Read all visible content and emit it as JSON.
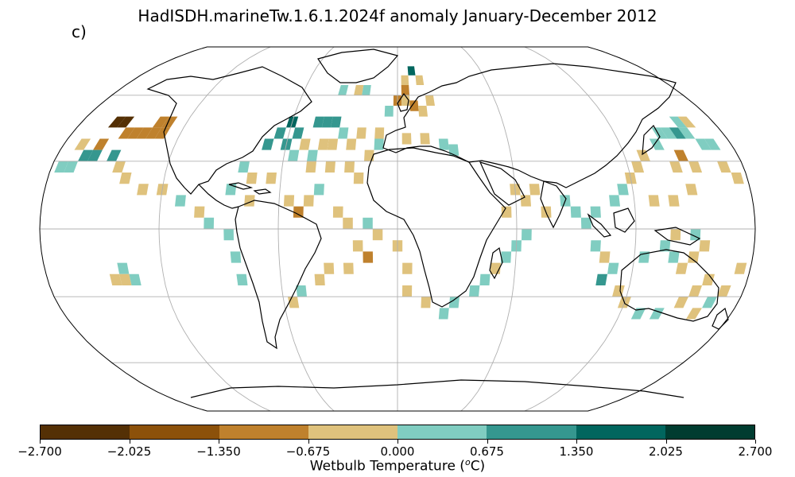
{
  "title": "HadISDH.marineTw.1.6.1.2024f anomaly January-December 2012",
  "panel_label": "c)",
  "colorbar": {
    "label_text": "Wetbulb Temperature (",
    "label_sup": "o",
    "label_unit": "C)",
    "colors": [
      "#543005",
      "#8c510a",
      "#bf812d",
      "#dfc27d",
      "#80cdc1",
      "#35978f",
      "#01665e",
      "#003c30"
    ],
    "ticks": [
      "−2.700",
      "−2.025",
      "−1.350",
      "−0.675",
      "0.000",
      "0.675",
      "1.350",
      "2.025",
      "2.700"
    ]
  },
  "chart_data": {
    "type": "heatmap",
    "projection": "Robinson",
    "variable": "Wetbulb Temperature anomaly",
    "units": "oC",
    "period": "January-December 2012",
    "color_range": [
      -2.7,
      2.7
    ],
    "bin_edges": [
      -2.7,
      -2.025,
      -1.35,
      -0.675,
      0.0,
      0.675,
      1.35,
      2.025,
      2.7
    ],
    "grid": true,
    "cells": [
      {
        "lon": -160,
        "lat": 47.5,
        "value": -2.3
      },
      {
        "lon": -155,
        "lat": 47.5,
        "value": -2.3
      },
      {
        "lon": -150,
        "lat": 42.5,
        "value": -1.0
      },
      {
        "lon": -145,
        "lat": 42.5,
        "value": -1.0
      },
      {
        "lon": -140,
        "lat": 42.5,
        "value": -1.0
      },
      {
        "lon": -135,
        "lat": 42.5,
        "value": -1.0
      },
      {
        "lon": -130,
        "lat": 42.5,
        "value": -1.0
      },
      {
        "lon": -130,
        "lat": 47.5,
        "value": -1.0
      },
      {
        "lon": -135,
        "lat": 47.5,
        "value": -1.0
      },
      {
        "lon": -160,
        "lat": 37.5,
        "value": -1.0
      },
      {
        "lon": -170,
        "lat": 37.5,
        "value": -0.4
      },
      {
        "lon": -165,
        "lat": 32.5,
        "value": 0.9
      },
      {
        "lon": -160,
        "lat": 32.5,
        "value": 0.9
      },
      {
        "lon": -150,
        "lat": 32.5,
        "value": 0.9
      },
      {
        "lon": -145,
        "lat": 27.5,
        "value": -0.4
      },
      {
        "lon": -170,
        "lat": 27.5,
        "value": 0.4
      },
      {
        "lon": -175,
        "lat": 27.5,
        "value": 0.4
      },
      {
        "lon": -140,
        "lat": 22.5,
        "value": -0.4
      },
      {
        "lon": -130,
        "lat": 17.5,
        "value": -0.4
      },
      {
        "lon": -120,
        "lat": 17.5,
        "value": -0.4
      },
      {
        "lon": -110,
        "lat": 12.5,
        "value": 0.4
      },
      {
        "lon": -100,
        "lat": 7.5,
        "value": -0.4
      },
      {
        "lon": -95,
        "lat": 2.5,
        "value": 0.4
      },
      {
        "lon": -85,
        "lat": -2.5,
        "value": 0.4
      },
      {
        "lon": -82,
        "lat": -12.5,
        "value": 0.4
      },
      {
        "lon": -80,
        "lat": -22.5,
        "value": 0.4
      },
      {
        "lon": -140,
        "lat": -17.5,
        "value": 0.4
      },
      {
        "lon": -145,
        "lat": -22.5,
        "value": -0.4
      },
      {
        "lon": -140,
        "lat": -22.5,
        "value": -0.4
      },
      {
        "lon": -135,
        "lat": -22.5,
        "value": 0.4
      },
      {
        "lon": -70,
        "lat": 37.5,
        "value": 1.0
      },
      {
        "lon": -60,
        "lat": 37.5,
        "value": 1.0
      },
      {
        "lon": -65,
        "lat": 42.5,
        "value": 1.0
      },
      {
        "lon": -55,
        "lat": 42.5,
        "value": 1.0
      },
      {
        "lon": -45,
        "lat": 47.5,
        "value": 1.0
      },
      {
        "lon": -40,
        "lat": 47.5,
        "value": 1.0
      },
      {
        "lon": -35,
        "lat": 47.5,
        "value": 1.0
      },
      {
        "lon": -60,
        "lat": 47.5,
        "value": 1.7
      },
      {
        "lon": -55,
        "lat": 32.5,
        "value": 0.4
      },
      {
        "lon": -45,
        "lat": 32.5,
        "value": 0.4
      },
      {
        "lon": -30,
        "lat": 42.5,
        "value": 0.4
      },
      {
        "lon": -50,
        "lat": 37.5,
        "value": -0.4
      },
      {
        "lon": -40,
        "lat": 37.5,
        "value": -0.4
      },
      {
        "lon": -35,
        "lat": 37.5,
        "value": -0.4
      },
      {
        "lon": -25,
        "lat": 37.5,
        "value": -0.4
      },
      {
        "lon": -20,
        "lat": 42.5,
        "value": -0.4
      },
      {
        "lon": -10,
        "lat": 42.5,
        "value": -0.4
      },
      {
        "lon": -45,
        "lat": 27.5,
        "value": -0.4
      },
      {
        "lon": -35,
        "lat": 27.5,
        "value": -0.4
      },
      {
        "lon": -25,
        "lat": 27.5,
        "value": -0.4
      },
      {
        "lon": -20,
        "lat": 22.5,
        "value": -0.4
      },
      {
        "lon": -65,
        "lat": 22.5,
        "value": -0.4
      },
      {
        "lon": -75,
        "lat": 22.5,
        "value": -0.4
      },
      {
        "lon": -80,
        "lat": 27.5,
        "value": 0.4
      },
      {
        "lon": -85,
        "lat": 17.5,
        "value": 0.4
      },
      {
        "lon": -75,
        "lat": 12.5,
        "value": -0.4
      },
      {
        "lon": -55,
        "lat": 12.5,
        "value": -0.4
      },
      {
        "lon": -45,
        "lat": 12.5,
        "value": -0.4
      },
      {
        "lon": -40,
        "lat": 17.5,
        "value": 0.4
      },
      {
        "lon": -50,
        "lat": 7.5,
        "value": -1.0
      },
      {
        "lon": -30,
        "lat": 7.5,
        "value": -0.4
      },
      {
        "lon": -25,
        "lat": 2.5,
        "value": -0.4
      },
      {
        "lon": -15,
        "lat": 2.5,
        "value": 0.4
      },
      {
        "lon": -10,
        "lat": -2.5,
        "value": -0.4
      },
      {
        "lon": -20,
        "lat": -7.5,
        "value": -0.4
      },
      {
        "lon": -15,
        "lat": -12.5,
        "value": -1.0
      },
      {
        "lon": -25,
        "lat": -17.5,
        "value": -0.4
      },
      {
        "lon": -35,
        "lat": -17.5,
        "value": -0.4
      },
      {
        "lon": -40,
        "lat": -22.5,
        "value": -0.4
      },
      {
        "lon": -50,
        "lat": -27.5,
        "value": 0.4
      },
      {
        "lon": -55,
        "lat": -32.5,
        "value": -0.4
      },
      {
        "lon": 0,
        "lat": -7.5,
        "value": -0.4
      },
      {
        "lon": 5,
        "lat": -17.5,
        "value": -0.4
      },
      {
        "lon": 5,
        "lat": -27.5,
        "value": -0.4
      },
      {
        "lon": 15,
        "lat": -32.5,
        "value": -0.4
      },
      {
        "lon": 25,
        "lat": -37.5,
        "value": 0.4
      },
      {
        "lon": 30,
        "lat": -32.5,
        "value": 0.4
      },
      {
        "lon": 40,
        "lat": -27.5,
        "value": 0.4
      },
      {
        "lon": 45,
        "lat": -22.5,
        "value": 0.4
      },
      {
        "lon": 50,
        "lat": -17.5,
        "value": -0.4
      },
      {
        "lon": 55,
        "lat": -12.5,
        "value": 0.4
      },
      {
        "lon": 60,
        "lat": -7.5,
        "value": 0.4
      },
      {
        "lon": 65,
        "lat": -2.5,
        "value": 0.4
      },
      {
        "lon": 55,
        "lat": 7.5,
        "value": -0.4
      },
      {
        "lon": 60,
        "lat": 17.5,
        "value": -0.4
      },
      {
        "lon": 65,
        "lat": 12.5,
        "value": -0.4
      },
      {
        "lon": 70,
        "lat": 17.5,
        "value": -0.4
      },
      {
        "lon": 75,
        "lat": 7.5,
        "value": -0.4
      },
      {
        "lon": 85,
        "lat": 12.5,
        "value": 0.4
      },
      {
        "lon": 90,
        "lat": 7.5,
        "value": 0.4
      },
      {
        "lon": 95,
        "lat": 2.5,
        "value": 0.4
      },
      {
        "lon": 100,
        "lat": 7.5,
        "value": 0.4
      },
      {
        "lon": 110,
        "lat": 12.5,
        "value": 0.4
      },
      {
        "lon": 115,
        "lat": 17.5,
        "value": 0.4
      },
      {
        "lon": 120,
        "lat": 22.5,
        "value": -0.4
      },
      {
        "lon": 125,
        "lat": 27.5,
        "value": -0.4
      },
      {
        "lon": 130,
        "lat": 32.5,
        "value": -0.4
      },
      {
        "lon": 130,
        "lat": 12.5,
        "value": -0.4
      },
      {
        "lon": 140,
        "lat": 12.5,
        "value": -0.4
      },
      {
        "lon": 150,
        "lat": 17.5,
        "value": -0.4
      },
      {
        "lon": 145,
        "lat": 27.5,
        "value": -0.4
      },
      {
        "lon": 150,
        "lat": 32.5,
        "value": -1.0
      },
      {
        "lon": 155,
        "lat": 27.5,
        "value": -0.4
      },
      {
        "lon": 140,
        "lat": 37.5,
        "value": 0.4
      },
      {
        "lon": 145,
        "lat": 42.5,
        "value": 0.4
      },
      {
        "lon": 150,
        "lat": 42.5,
        "value": 0.4
      },
      {
        "lon": 155,
        "lat": 42.5,
        "value": 1.0
      },
      {
        "lon": 160,
        "lat": 42.5,
        "value": 0.4
      },
      {
        "lon": 165,
        "lat": 37.5,
        "value": 0.4
      },
      {
        "lon": 170,
        "lat": 37.5,
        "value": 0.4
      },
      {
        "lon": 160,
        "lat": 47.5,
        "value": 0.4
      },
      {
        "lon": 165,
        "lat": 47.5,
        "value": -0.4
      },
      {
        "lon": 170,
        "lat": 27.5,
        "value": -0.4
      },
      {
        "lon": 175,
        "lat": 22.5,
        "value": -0.4
      },
      {
        "lon": 100,
        "lat": -7.5,
        "value": 0.4
      },
      {
        "lon": 105,
        "lat": -12.5,
        "value": -0.4
      },
      {
        "lon": 110,
        "lat": -17.5,
        "value": 0.4
      },
      {
        "lon": 105,
        "lat": -22.5,
        "value": 1.0
      },
      {
        "lon": 115,
        "lat": -27.5,
        "value": -0.4
      },
      {
        "lon": 120,
        "lat": -32.5,
        "value": -0.4
      },
      {
        "lon": 130,
        "lat": -37.5,
        "value": 0.4
      },
      {
        "lon": 140,
        "lat": -37.5,
        "value": 0.4
      },
      {
        "lon": 150,
        "lat": -32.5,
        "value": -0.4
      },
      {
        "lon": 155,
        "lat": -27.5,
        "value": -0.4
      },
      {
        "lon": 160,
        "lat": -22.5,
        "value": -0.4
      },
      {
        "lon": 160,
        "lat": -37.5,
        "value": -0.4
      },
      {
        "lon": 165,
        "lat": -32.5,
        "value": 0.4
      },
      {
        "lon": 170,
        "lat": -27.5,
        "value": -0.4
      },
      {
        "lon": 175,
        "lat": -17.5,
        "value": -0.4
      },
      {
        "lon": 125,
        "lat": -12.5,
        "value": 0.4
      },
      {
        "lon": 135,
        "lat": -7.5,
        "value": 0.4
      },
      {
        "lon": 140,
        "lat": -12.5,
        "value": 0.4
      },
      {
        "lon": 145,
        "lat": -17.5,
        "value": -0.4
      },
      {
        "lon": 150,
        "lat": -12.5,
        "value": -0.4
      },
      {
        "lon": 155,
        "lat": -7.5,
        "value": -0.4
      },
      {
        "lon": 150,
        "lat": -2.5,
        "value": 0.4
      },
      {
        "lon": 140,
        "lat": -2.5,
        "value": -0.4
      },
      {
        "lon": 0,
        "lat": 57.5,
        "value": -1.0
      },
      {
        "lon": 5,
        "lat": 62.5,
        "value": -1.0
      },
      {
        "lon": 5,
        "lat": 57.5,
        "value": -0.4
      },
      {
        "lon": -5,
        "lat": 52.5,
        "value": 0.4
      },
      {
        "lon": 10,
        "lat": 55.0,
        "value": -1.0
      },
      {
        "lon": 15,
        "lat": 52.5,
        "value": -0.4
      },
      {
        "lon": 20,
        "lat": 57.5,
        "value": -0.4
      },
      {
        "lon": -20,
        "lat": 62.5,
        "value": 0.4
      },
      {
        "lon": -25,
        "lat": 62.5,
        "value": -0.4
      },
      {
        "lon": -35,
        "lat": 62.5,
        "value": 0.4
      },
      {
        "lon": 10,
        "lat": 72.5,
        "value": 1.7
      },
      {
        "lon": 15,
        "lat": 67.5,
        "value": -0.4
      },
      {
        "lon": 5,
        "lat": 67.5,
        "value": -0.4
      },
      {
        "lon": 15,
        "lat": 40.0,
        "value": -0.4
      },
      {
        "lon": 25,
        "lat": 37.5,
        "value": 0.4
      },
      {
        "lon": 30,
        "lat": 35.0,
        "value": 0.4
      },
      {
        "lon": 5,
        "lat": 40.0,
        "value": -0.4
      },
      {
        "lon": -10,
        "lat": 37.5,
        "value": 0.4
      },
      {
        "lon": -15,
        "lat": 32.5,
        "value": -0.4
      }
    ]
  }
}
